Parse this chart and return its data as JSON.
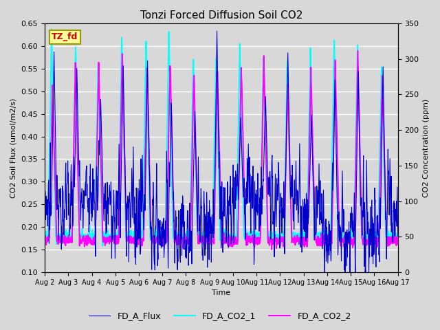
{
  "title": "Tonzi Forced Diffusion Soil CO2",
  "xlabel": "Time",
  "ylabel_left": "CO2 Soil Flux (umol/m2/s)",
  "ylabel_right": "CO2 Concentration (ppm)",
  "ylim_left": [
    0.1,
    0.65
  ],
  "ylim_right": [
    0,
    350
  ],
  "yticks_left": [
    0.1,
    0.15,
    0.2,
    0.25,
    0.3,
    0.35,
    0.4,
    0.45,
    0.5,
    0.55,
    0.6,
    0.65
  ],
  "yticks_right": [
    0,
    50,
    100,
    150,
    200,
    250,
    300,
    350
  ],
  "xtick_labels": [
    "Aug 2",
    "Aug 3",
    "Aug 4",
    "Aug 5",
    "Aug 6",
    "Aug 7",
    "Aug 8",
    "Aug 9",
    "Aug 10",
    "Aug 11",
    "Aug 12",
    "Aug 13",
    "Aug 14",
    "Aug 15",
    "Aug 16",
    "Aug 17"
  ],
  "legend_labels": [
    "FD_A_Flux",
    "FD_A_CO2_1",
    "FD_A_CO2_2"
  ],
  "flux_color": "#0000CC",
  "co2_1_color": "#00FFFF",
  "co2_2_color": "#FF00FF",
  "annotation_text": "TZ_fd",
  "annotation_color": "#CC0000",
  "annotation_bg": "#FFFF99",
  "background_color": "#D8D8D8",
  "plot_bg_color": "#D8D8D8",
  "grid_color": "#FFFFFF",
  "title_fontsize": 11,
  "label_fontsize": 8,
  "tick_fontsize": 8,
  "legend_fontsize": 9,
  "flux_linewidth": 0.8,
  "co2_linewidth": 1.4,
  "n_days": 15,
  "pts_per_day": 96,
  "figwidth": 6.4,
  "figheight": 4.8,
  "dpi": 100
}
